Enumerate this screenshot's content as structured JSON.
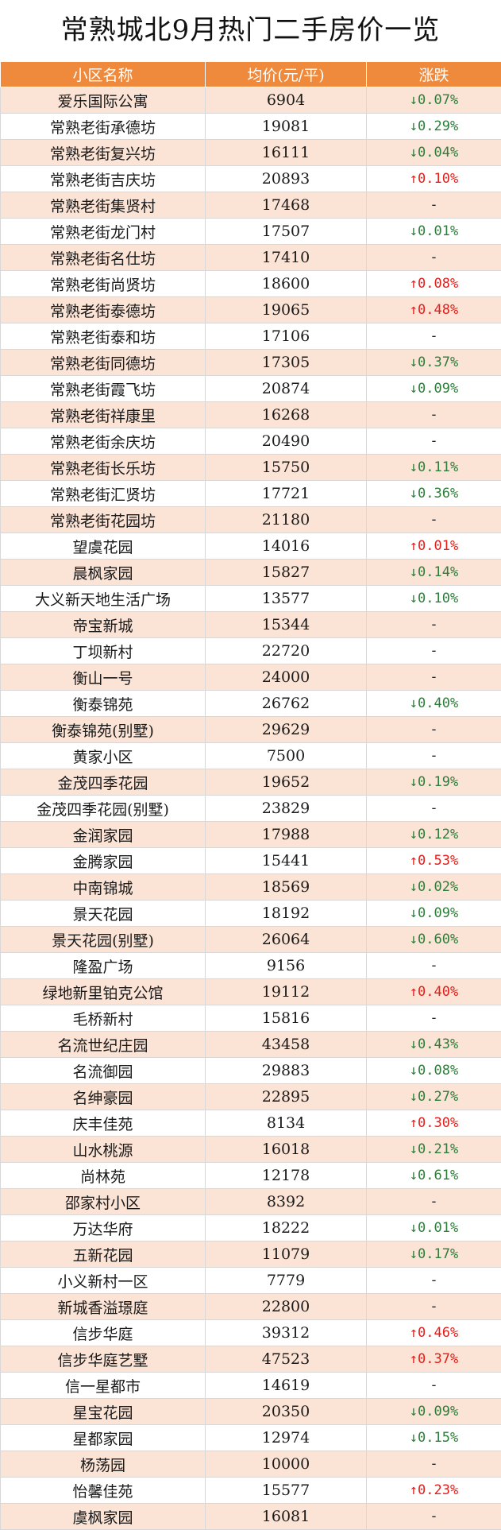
{
  "title": "常熟城北9月热门二手房价一览",
  "headers": {
    "name": "小区名称",
    "price": "均价(元/平)",
    "change": "涨跌"
  },
  "colors": {
    "header_bg": "#ef8a3d",
    "row_shade": "#fbe3d5",
    "up": "#e2201c",
    "down": "#2f7d3b"
  },
  "rows": [
    {
      "name": "爱乐国际公寓",
      "price": "6904",
      "change": "↓0.07%",
      "dir": "down"
    },
    {
      "name": "常熟老街承德坊",
      "price": "19081",
      "change": "↓0.29%",
      "dir": "down"
    },
    {
      "name": "常熟老街复兴坊",
      "price": "16111",
      "change": "↓0.04%",
      "dir": "down"
    },
    {
      "name": "常熟老街吉庆坊",
      "price": "20893",
      "change": "↑0.10%",
      "dir": "up"
    },
    {
      "name": "常熟老街集贤村",
      "price": "17468",
      "change": "-",
      "dir": "flat"
    },
    {
      "name": "常熟老街龙门村",
      "price": "17507",
      "change": "↓0.01%",
      "dir": "down"
    },
    {
      "name": "常熟老街名仕坊",
      "price": "17410",
      "change": "-",
      "dir": "flat"
    },
    {
      "name": "常熟老街尚贤坊",
      "price": "18600",
      "change": "↑0.08%",
      "dir": "up"
    },
    {
      "name": "常熟老街泰德坊",
      "price": "19065",
      "change": "↑0.48%",
      "dir": "up"
    },
    {
      "name": "常熟老街泰和坊",
      "price": "17106",
      "change": "-",
      "dir": "flat"
    },
    {
      "name": "常熟老街同德坊",
      "price": "17305",
      "change": "↓0.37%",
      "dir": "down"
    },
    {
      "name": "常熟老街霞飞坊",
      "price": "20874",
      "change": "↓0.09%",
      "dir": "down"
    },
    {
      "name": "常熟老街祥康里",
      "price": "16268",
      "change": "-",
      "dir": "flat"
    },
    {
      "name": "常熟老街余庆坊",
      "price": "20490",
      "change": "-",
      "dir": "flat"
    },
    {
      "name": "常熟老街长乐坊",
      "price": "15750",
      "change": "↓0.11%",
      "dir": "down"
    },
    {
      "name": "常熟老街汇贤坊",
      "price": "17721",
      "change": "↓0.36%",
      "dir": "down"
    },
    {
      "name": "常熟老街花园坊",
      "price": "21180",
      "change": "-",
      "dir": "flat"
    },
    {
      "name": "望虞花园",
      "price": "14016",
      "change": "↑0.01%",
      "dir": "up"
    },
    {
      "name": "晨枫家园",
      "price": "15827",
      "change": "↓0.14%",
      "dir": "down"
    },
    {
      "name": "大义新天地生活广场",
      "price": "13577",
      "change": "↓0.10%",
      "dir": "down"
    },
    {
      "name": "帝宝新城",
      "price": "15344",
      "change": "-",
      "dir": "flat"
    },
    {
      "name": "丁坝新村",
      "price": "22720",
      "change": "-",
      "dir": "flat"
    },
    {
      "name": "衡山一号",
      "price": "24000",
      "change": "-",
      "dir": "flat"
    },
    {
      "name": "衡泰锦苑",
      "price": "26762",
      "change": "↓0.40%",
      "dir": "down"
    },
    {
      "name": "衡泰锦苑(别墅)",
      "price": "29629",
      "change": "-",
      "dir": "flat"
    },
    {
      "name": "黄家小区",
      "price": "7500",
      "change": "-",
      "dir": "flat"
    },
    {
      "name": "金茂四季花园",
      "price": "19652",
      "change": "↓0.19%",
      "dir": "down"
    },
    {
      "name": "金茂四季花园(别墅)",
      "price": "23829",
      "change": "-",
      "dir": "flat"
    },
    {
      "name": "金润家园",
      "price": "17988",
      "change": "↓0.12%",
      "dir": "down"
    },
    {
      "name": "金腾家园",
      "price": "15441",
      "change": "↑0.53%",
      "dir": "up"
    },
    {
      "name": "中南锦城",
      "price": "18569",
      "change": "↓0.02%",
      "dir": "down"
    },
    {
      "name": "景天花园",
      "price": "18192",
      "change": "↓0.09%",
      "dir": "down"
    },
    {
      "name": "景天花园(别墅)",
      "price": "26064",
      "change": "↓0.60%",
      "dir": "down"
    },
    {
      "name": "隆盈广场",
      "price": "9156",
      "change": "-",
      "dir": "flat"
    },
    {
      "name": "绿地新里铂克公馆",
      "price": "19112",
      "change": "↑0.40%",
      "dir": "up"
    },
    {
      "name": "毛桥新村",
      "price": "15816",
      "change": "-",
      "dir": "flat"
    },
    {
      "name": "名流世纪庄园",
      "price": "43458",
      "change": "↓0.43%",
      "dir": "down"
    },
    {
      "name": "名流御园",
      "price": "29883",
      "change": "↓0.08%",
      "dir": "down"
    },
    {
      "name": "名绅豪园",
      "price": "22895",
      "change": "↓0.27%",
      "dir": "down"
    },
    {
      "name": "庆丰佳苑",
      "price": "8134",
      "change": "↑0.30%",
      "dir": "up"
    },
    {
      "name": "山水桃源",
      "price": "16018",
      "change": "↓0.21%",
      "dir": "down"
    },
    {
      "name": "尚林苑",
      "price": "12178",
      "change": "↓0.61%",
      "dir": "down"
    },
    {
      "name": "邵家村小区",
      "price": "8392",
      "change": "-",
      "dir": "flat"
    },
    {
      "name": "万达华府",
      "price": "18222",
      "change": "↓0.01%",
      "dir": "down"
    },
    {
      "name": "五新花园",
      "price": "11079",
      "change": "↓0.17%",
      "dir": "down"
    },
    {
      "name": "小义新村一区",
      "price": "7779",
      "change": "-",
      "dir": "flat"
    },
    {
      "name": "新城香溢璟庭",
      "price": "22800",
      "change": "-",
      "dir": "flat"
    },
    {
      "name": "信步华庭",
      "price": "39312",
      "change": "↑0.46%",
      "dir": "up"
    },
    {
      "name": "信步华庭艺墅",
      "price": "47523",
      "change": "↑0.37%",
      "dir": "up"
    },
    {
      "name": "信一星都市",
      "price": "14619",
      "change": "-",
      "dir": "flat"
    },
    {
      "name": "星宝花园",
      "price": "20350",
      "change": "↓0.09%",
      "dir": "down"
    },
    {
      "name": "星都家园",
      "price": "12974",
      "change": "↓0.15%",
      "dir": "down"
    },
    {
      "name": "杨荡园",
      "price": "10000",
      "change": "-",
      "dir": "flat"
    },
    {
      "name": "怡馨佳苑",
      "price": "15577",
      "change": "↑0.23%",
      "dir": "up"
    },
    {
      "name": "虞枫家园",
      "price": "16081",
      "change": "-",
      "dir": "flat"
    }
  ]
}
